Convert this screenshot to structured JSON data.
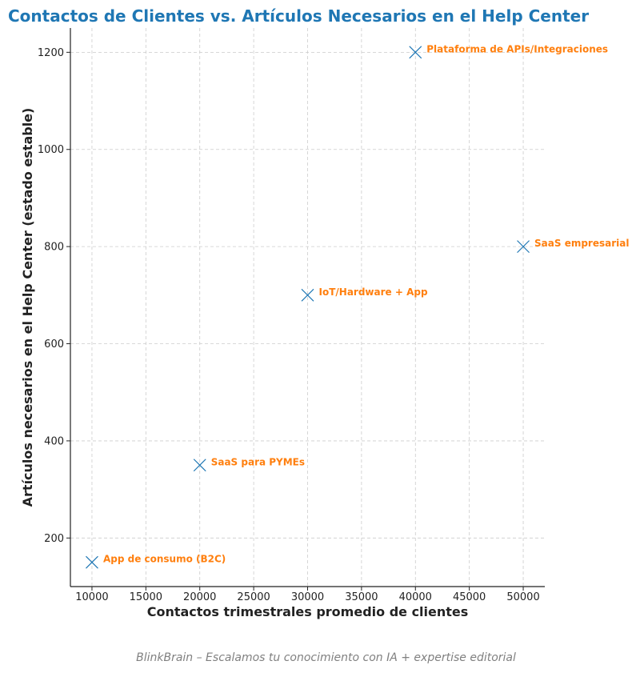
{
  "chart_data": {
    "type": "scatter",
    "title": "Contactos de Clientes vs. Artículos Necesarios en el Help Center",
    "xlabel": "Contactos trimestrales promedio de clientes",
    "ylabel": "Artículos necesarios en el Help Center (estado estable)",
    "xlim": [
      8000,
      52000
    ],
    "ylim": [
      100,
      1250
    ],
    "xticks": [
      10000,
      15000,
      20000,
      25000,
      30000,
      35000,
      40000,
      45000,
      50000
    ],
    "yticks": [
      200,
      400,
      600,
      800,
      1000,
      1200
    ],
    "grid": true,
    "marker": "x",
    "points": [
      {
        "label": "App de consumo (B2C)",
        "x": 10000,
        "y": 150
      },
      {
        "label": "SaaS para PYMEs",
        "x": 20000,
        "y": 350
      },
      {
        "label": "IoT/Hardware + App",
        "x": 30000,
        "y": 700
      },
      {
        "label": "Plataforma de APIs/Integraciones",
        "x": 40000,
        "y": 1200
      },
      {
        "label": "SaaS empresarial",
        "x": 50000,
        "y": 800
      }
    ]
  },
  "colors": {
    "title": "#1f77b4",
    "marker": "#1f77b4",
    "point_label": "#ff7f0e"
  },
  "footer": "BlinkBrain – Escalamos tu conocimiento con IA + expertise editorial"
}
